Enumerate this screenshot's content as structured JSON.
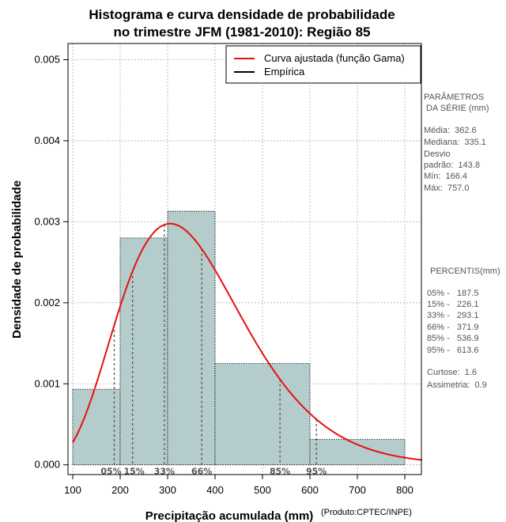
{
  "colors": {
    "bar_fill": "#b4cccb",
    "curve": "#e81010",
    "grid": "#b0b0b0",
    "percentile_line": "#555555",
    "side_text": "#555555"
  },
  "chart_data": {
    "type": "bar",
    "title_line1": "Histograma e curva densidade de probabilidade",
    "title_line2": "no trimestre JFM (1981-2010): Região 85",
    "xlabel": "Precipitação acumulada (mm)",
    "ylabel": "Densidade de probabilidade",
    "credit": "(Produto:CPTEC/INPE)",
    "xlim": [
      90,
      835
    ],
    "ylim": [
      -0.00012,
      0.0052
    ],
    "x_ticks": [
      100,
      200,
      300,
      400,
      500,
      600,
      700,
      800
    ],
    "x_tick_labels": [
      "100",
      "200",
      "300",
      "400",
      "500",
      "600",
      "700",
      "800"
    ],
    "y_ticks": [
      0,
      0.001,
      0.002,
      0.003,
      0.004,
      0.005
    ],
    "y_tick_labels": [
      "0.000",
      "0.001",
      "0.002",
      "0.003",
      "0.004",
      "0.005"
    ],
    "grid": true,
    "bins": [
      {
        "start": 100,
        "end": 200,
        "density": 0.000933
      },
      {
        "start": 200,
        "end": 300,
        "density": 0.0028
      },
      {
        "start": 300,
        "end": 400,
        "density": 0.00313
      },
      {
        "start": 400,
        "end": 600,
        "density": 0.00125
      },
      {
        "start": 600,
        "end": 800,
        "density": 0.000313
      }
    ],
    "gamma_fit": {
      "shape": 6.36,
      "scale": 57.0,
      "x_start": 100,
      "x_end": 840
    },
    "legend": {
      "position": "top-right",
      "entries": [
        {
          "label": "Curva ajustada (função Gama)",
          "color": "#e81010"
        },
        {
          "label": "Empírica",
          "color": "#000000"
        }
      ]
    },
    "percentiles": [
      {
        "label": "05%",
        "value": 187.5
      },
      {
        "label": "15%",
        "value": 226.1
      },
      {
        "label": "33%",
        "value": 293.1
      },
      {
        "label": "66%",
        "value": 371.9
      },
      {
        "label": "85%",
        "value": 536.9
      },
      {
        "label": "95%",
        "value": 613.6
      }
    ]
  },
  "side_panel": {
    "params_title_1": "PARÂMETROS",
    "params_title_2": " DA SÉRIE (mm)",
    "stats": [
      "Média:  362.6",
      "Mediana:  335.1",
      "Desvio",
      "padrão:  143.8",
      "Mín:  166.4",
      "Máx:  757.0"
    ],
    "percentis_title": "PERCENTIS(mm)",
    "percentis": [
      "05% -   187.5",
      "15% -   226.1",
      "33% -   293.1",
      "66% -   371.9",
      "85% -   536.9",
      "95% -   613.6"
    ],
    "shape_stats": [
      "Curtose:  1.6",
      "Assimetria:  0.9"
    ]
  }
}
